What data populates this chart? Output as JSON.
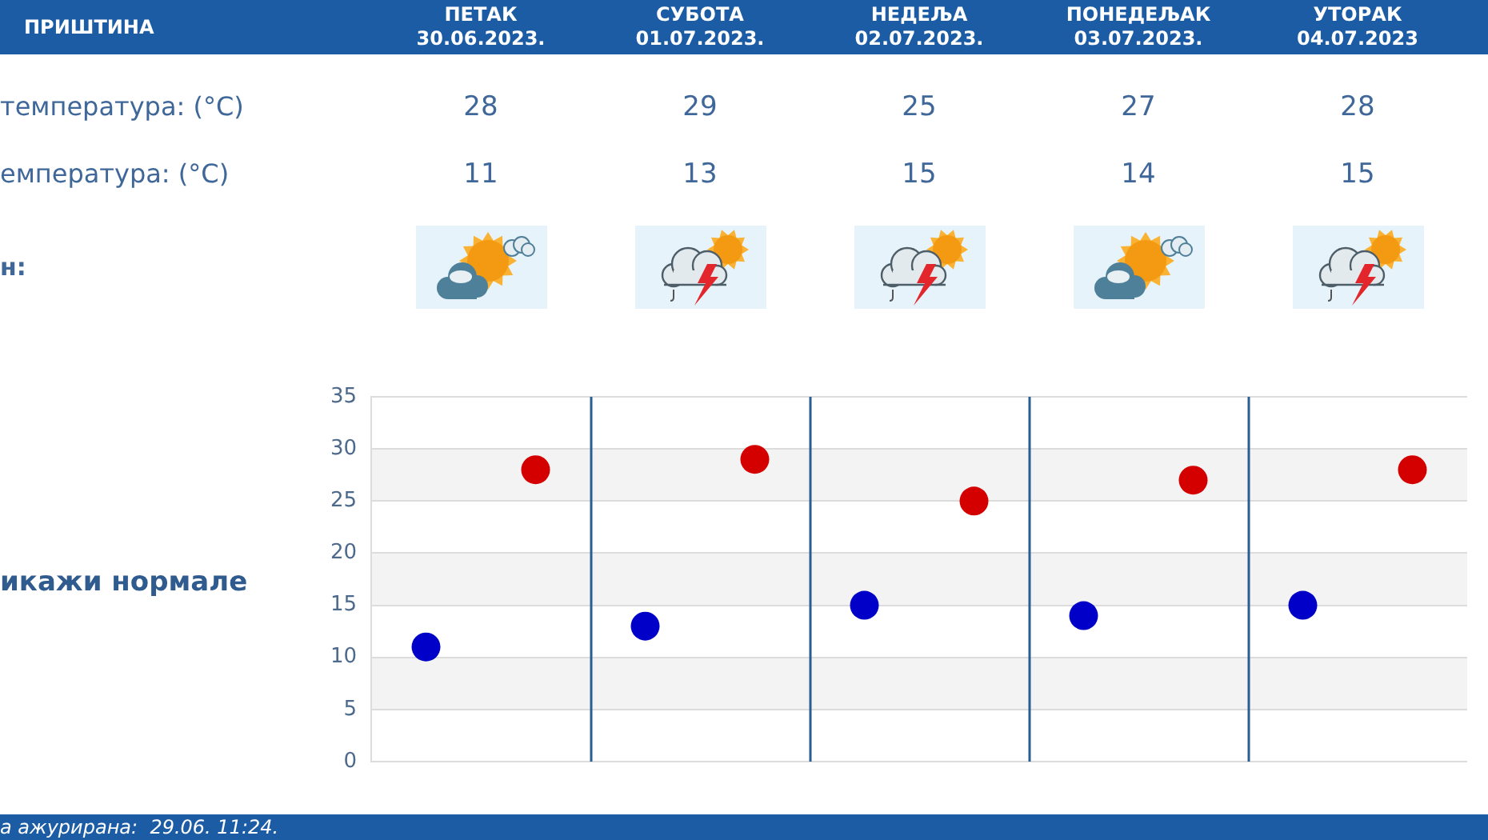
{
  "chart_data": {
    "type": "scatter",
    "title": "ПРИШТИНА",
    "categories": [
      null,
      null,
      null,
      null,
      null
    ],
    "series": [
      {
        "color": "#d40000",
        "values": [
          28,
          29,
          25,
          27,
          28
        ]
      },
      {
        "color": "#0000c8",
        "values": [
          11,
          13,
          15,
          14,
          15
        ]
      }
    ],
    "ylim": [
      0,
      35
    ],
    "yticks": [
      0,
      5,
      10,
      15,
      20,
      25,
      30,
      35
    ],
    "grid": true,
    "marker": "circle",
    "data_labels": true,
    "annotations": [
      "ПЕТАК\n30.06.2023.",
      "СУБОТА\n01.07.2023.",
      "НЕДЕЉА\n02.07.2023.",
      "ПОНЕДЕЉАК\n03.07.2023.",
      "УТОРАК\n04.07.2023",
      "температура: (°C)",
      "емпература: (°C)",
      "н:",
      "икажи нормале",
      "а ажурирана:  29.06. 11:24."
    ]
  }
}
